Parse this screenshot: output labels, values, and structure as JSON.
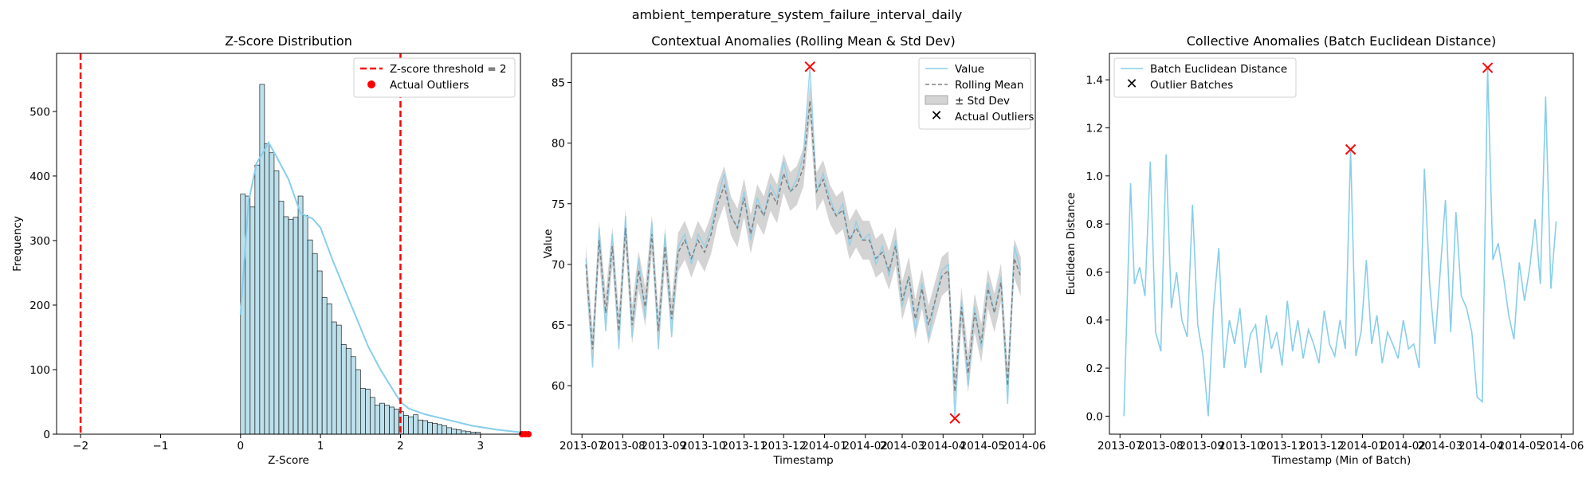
{
  "figure_title": "ambient_temperature_system_failure_interval_daily",
  "colors": {
    "primary": "#87CEEB",
    "hist_fill": "#ADD8E6",
    "outlier": "#FF0000",
    "rolling": "#808080",
    "band": "#A9A9A9"
  },
  "chart_data": [
    {
      "type": "bar",
      "title": "Z-Score Distribution",
      "xlabel": "Z-Score",
      "ylabel": "Frequency",
      "xlim": [
        -2.3,
        3.5
      ],
      "ylim": [
        0,
        590
      ],
      "xticks": [
        -2,
        -1,
        0,
        1,
        2,
        3
      ],
      "xtick_labels": [
        "−2",
        "−1",
        "0",
        "1",
        "2",
        "3"
      ],
      "yticks": [
        0,
        100,
        200,
        300,
        400,
        500
      ],
      "yticks_labels": [
        "0",
        "100",
        "200",
        "300",
        "400",
        "500"
      ],
      "bin_start": 0.0,
      "bin_width": 0.06,
      "values": [
        372,
        369,
        352,
        417,
        542,
        450,
        436,
        408,
        361,
        337,
        333,
        336,
        369,
        339,
        301,
        280,
        253,
        212,
        202,
        174,
        169,
        139,
        133,
        120,
        100,
        71,
        70,
        57,
        45,
        48,
        45,
        42,
        39,
        35,
        29,
        27,
        30,
        22,
        21,
        18,
        17,
        15,
        13,
        10,
        8,
        7,
        5,
        4,
        3,
        3
      ],
      "kde": [
        [
          0.0,
          185
        ],
        [
          0.1,
          360
        ],
        [
          0.2,
          420
        ],
        [
          0.3,
          440
        ],
        [
          0.35,
          452
        ],
        [
          0.45,
          430
        ],
        [
          0.6,
          395
        ],
        [
          0.75,
          342
        ],
        [
          0.9,
          334
        ],
        [
          1.0,
          320
        ],
        [
          1.15,
          270
        ],
        [
          1.3,
          225
        ],
        [
          1.45,
          180
        ],
        [
          1.6,
          135
        ],
        [
          1.75,
          100
        ],
        [
          1.9,
          70
        ],
        [
          2.0,
          50
        ],
        [
          2.1,
          40
        ],
        [
          2.3,
          31
        ],
        [
          2.6,
          22
        ],
        [
          2.9,
          13
        ],
        [
          3.2,
          7
        ],
        [
          3.5,
          3
        ]
      ],
      "threshold_lines": [
        -2,
        2
      ],
      "outlier_points": [
        3.52,
        3.56,
        3.6
      ],
      "legend": {
        "loc": "upper right",
        "entries": [
          "Z-score threshold = 2",
          "Actual Outliers"
        ]
      }
    },
    {
      "type": "line",
      "title": "Contextual Anomalies (Rolling Mean & Std Dev)",
      "xlabel": "Timestamp",
      "ylabel": "Value",
      "xlim": [
        "2013-06-23",
        "2014-06-10"
      ],
      "ylim": [
        56.0,
        87.4
      ],
      "xticks": [
        "2013-07-01",
        "2013-08-01",
        "2013-09-01",
        "2013-10-01",
        "2013-11-01",
        "2013-12-01",
        "2014-01-01",
        "2014-02-01",
        "2014-03-01",
        "2014-04-01",
        "2014-05-01",
        "2014-06-01"
      ],
      "xtick_labels": [
        "2013-07",
        "2013-08",
        "2013-09",
        "2013-10",
        "2013-11",
        "2013-12",
        "2014-01",
        "2014-02",
        "2014-03",
        "2014-04",
        "2014-05",
        "2014-06"
      ],
      "yticks": [
        60,
        65,
        70,
        75,
        80,
        85
      ],
      "yticks_labels": [
        "60",
        "65",
        "70",
        "75",
        "80",
        "85"
      ],
      "series": [
        {
          "name": "Value",
          "x": [
            "2013-07-04",
            "2013-07-09",
            "2013-07-14",
            "2013-07-19",
            "2013-07-24",
            "2013-07-29",
            "2013-08-03",
            "2013-08-08",
            "2013-08-13",
            "2013-08-18",
            "2013-08-23",
            "2013-08-28",
            "2013-09-02",
            "2013-09-07",
            "2013-09-12",
            "2013-09-17",
            "2013-09-22",
            "2013-09-27",
            "2013-10-02",
            "2013-10-07",
            "2013-10-12",
            "2013-10-17",
            "2013-10-22",
            "2013-10-27",
            "2013-11-01",
            "2013-11-06",
            "2013-11-11",
            "2013-11-16",
            "2013-11-21",
            "2013-11-26",
            "2013-12-01",
            "2013-12-06",
            "2013-12-11",
            "2013-12-16",
            "2013-12-21",
            "2013-12-26",
            "2013-12-31",
            "2014-01-05",
            "2014-01-10",
            "2014-01-15",
            "2014-01-20",
            "2014-01-25",
            "2014-01-30",
            "2014-02-04",
            "2014-02-09",
            "2014-02-14",
            "2014-02-19",
            "2014-02-24",
            "2014-03-01",
            "2014-03-06",
            "2014-03-11",
            "2014-03-16",
            "2014-03-21",
            "2014-03-26",
            "2014-03-31",
            "2014-04-05",
            "2014-04-10",
            "2014-04-15",
            "2014-04-20",
            "2014-04-25",
            "2014-04-30",
            "2014-05-05",
            "2014-05-10",
            "2014-05-15",
            "2014-05-20",
            "2014-05-25",
            "2014-05-30"
          ],
          "values": [
            70.5,
            61.5,
            73.0,
            64.5,
            72.5,
            63.0,
            74.0,
            64.0,
            70.5,
            65.5,
            73.5,
            63.0,
            72.5,
            64.0,
            71.5,
            72.5,
            70.0,
            72.5,
            71.5,
            73.0,
            75.5,
            77.5,
            74.0,
            73.0,
            76.0,
            72.0,
            75.5,
            74.0,
            76.5,
            75.5,
            78.5,
            76.0,
            77.0,
            79.0,
            86.3,
            76.0,
            77.5,
            75.5,
            74.0,
            75.0,
            71.5,
            73.5,
            72.0,
            72.5,
            70.0,
            71.5,
            69.0,
            72.0,
            66.5,
            69.0,
            64.5,
            68.5,
            64.0,
            67.0,
            69.5,
            70.0,
            57.3,
            67.0,
            60.0,
            66.5,
            63.0,
            68.5,
            66.0,
            69.0,
            58.5,
            71.5,
            69.5
          ]
        },
        {
          "name": "Rolling Mean",
          "x": "same",
          "values": [
            70.0,
            63.0,
            72.0,
            66.0,
            71.5,
            64.5,
            73.0,
            65.0,
            69.5,
            66.5,
            72.5,
            64.5,
            71.5,
            65.5,
            71.0,
            72.0,
            70.5,
            72.0,
            71.0,
            72.5,
            75.0,
            76.5,
            74.0,
            73.0,
            75.5,
            72.5,
            75.0,
            74.0,
            76.0,
            75.0,
            77.5,
            76.0,
            76.5,
            78.0,
            83.5,
            76.0,
            77.0,
            75.0,
            74.0,
            74.5,
            72.0,
            73.0,
            72.0,
            72.0,
            70.5,
            71.0,
            69.5,
            71.5,
            67.0,
            69.0,
            65.5,
            68.0,
            65.0,
            67.0,
            69.0,
            69.5,
            59.5,
            66.5,
            61.0,
            66.0,
            63.5,
            68.0,
            66.0,
            68.5,
            60.0,
            70.5,
            69.0
          ]
        },
        {
          "name": "± Std Dev",
          "half_width": 1.6
        }
      ],
      "outlier_points": [
        {
          "x": "2013-12-21",
          "y": 86.3
        },
        {
          "x": "2014-04-10",
          "y": 57.3
        }
      ],
      "legend": {
        "loc": "upper right",
        "entries": [
          "Value",
          "Rolling Mean",
          "± Std Dev",
          "Actual Outliers"
        ]
      }
    },
    {
      "type": "line",
      "title": "Collective Anomalies (Batch Euclidean Distance)",
      "xlabel": "Timestamp (Min of Batch)",
      "ylabel": "Euclidean Distance",
      "xlim": [
        "2013-06-23",
        "2014-06-10"
      ],
      "ylim": [
        -0.075,
        1.51
      ],
      "xticks": [
        "2013-07-01",
        "2013-08-01",
        "2013-09-01",
        "2013-10-01",
        "2013-11-01",
        "2013-12-01",
        "2014-01-01",
        "2014-02-01",
        "2014-03-01",
        "2014-04-01",
        "2014-05-01",
        "2014-06-01"
      ],
      "xtick_labels": [
        "2013-07",
        "2013-08",
        "2013-09",
        "2013-10",
        "2013-11",
        "2013-12",
        "2014-01",
        "2014-02",
        "2014-03",
        "2014-04",
        "2014-05",
        "2014-06"
      ],
      "yticks": [
        0.0,
        0.2,
        0.4,
        0.6,
        0.8,
        1.0,
        1.2,
        1.4
      ],
      "yticks_labels": [
        "0.0",
        "0.2",
        "0.4",
        "0.6",
        "0.8",
        "1.0",
        "1.2",
        "1.4"
      ],
      "series": [
        {
          "name": "Batch Euclidean Distance",
          "x": [
            "2013-07-04",
            "2013-07-09",
            "2013-07-12",
            "2013-07-16",
            "2013-07-20",
            "2013-07-24",
            "2013-07-28",
            "2013-08-01",
            "2013-08-05",
            "2013-08-09",
            "2013-08-13",
            "2013-08-17",
            "2013-08-21",
            "2013-08-25",
            "2013-08-29",
            "2013-09-02",
            "2013-09-06",
            "2013-09-10",
            "2013-09-14",
            "2013-09-18",
            "2013-09-22",
            "2013-09-26",
            "2013-09-30",
            "2013-10-04",
            "2013-10-08",
            "2013-10-12",
            "2013-10-16",
            "2013-10-20",
            "2013-10-24",
            "2013-10-28",
            "2013-11-01",
            "2013-11-05",
            "2013-11-09",
            "2013-11-13",
            "2013-11-17",
            "2013-11-21",
            "2013-11-25",
            "2013-11-29",
            "2013-12-03",
            "2013-12-07",
            "2013-12-11",
            "2013-12-15",
            "2013-12-19",
            "2013-12-23",
            "2013-12-27",
            "2013-12-31",
            "2014-01-04",
            "2014-01-08",
            "2014-01-12",
            "2014-01-16",
            "2014-01-20",
            "2014-01-24",
            "2014-01-28",
            "2014-02-01",
            "2014-02-05",
            "2014-02-09",
            "2014-02-13",
            "2014-02-17",
            "2014-02-21",
            "2014-02-25",
            "2014-03-01",
            "2014-03-05",
            "2014-03-09",
            "2014-03-13",
            "2014-03-17",
            "2014-03-21",
            "2014-03-25",
            "2014-03-29",
            "2014-04-02",
            "2014-04-06",
            "2014-04-10",
            "2014-04-14",
            "2014-04-18",
            "2014-04-22",
            "2014-04-26",
            "2014-04-30",
            "2014-05-04",
            "2014-05-08",
            "2014-05-12",
            "2014-05-16",
            "2014-05-20",
            "2014-05-24",
            "2014-05-28"
          ],
          "values": [
            0.0,
            0.97,
            0.55,
            0.62,
            0.5,
            1.06,
            0.35,
            0.27,
            1.09,
            0.45,
            0.6,
            0.4,
            0.33,
            0.88,
            0.38,
            0.25,
            0.0,
            0.45,
            0.7,
            0.2,
            0.4,
            0.3,
            0.45,
            0.2,
            0.34,
            0.38,
            0.18,
            0.42,
            0.28,
            0.35,
            0.21,
            0.48,
            0.27,
            0.4,
            0.24,
            0.36,
            0.3,
            0.22,
            0.44,
            0.3,
            0.25,
            0.4,
            0.28,
            1.11,
            0.25,
            0.35,
            0.65,
            0.3,
            0.42,
            0.22,
            0.35,
            0.3,
            0.24,
            0.4,
            0.28,
            0.3,
            0.2,
            1.03,
            0.55,
            0.3,
            0.6,
            0.9,
            0.35,
            0.85,
            0.5,
            0.45,
            0.35,
            0.08,
            0.06,
            1.45,
            0.65,
            0.72,
            0.58,
            0.42,
            0.32,
            0.64,
            0.48,
            0.62,
            0.82,
            0.55,
            1.33,
            0.53,
            0.81
          ]
        }
      ],
      "outlier_points": [
        {
          "x": "2013-12-23",
          "y": 1.11
        },
        {
          "x": "2014-04-06",
          "y": 1.45
        }
      ],
      "legend": {
        "loc": "upper left",
        "entries": [
          "Batch Euclidean Distance",
          "Outlier Batches"
        ]
      }
    }
  ]
}
